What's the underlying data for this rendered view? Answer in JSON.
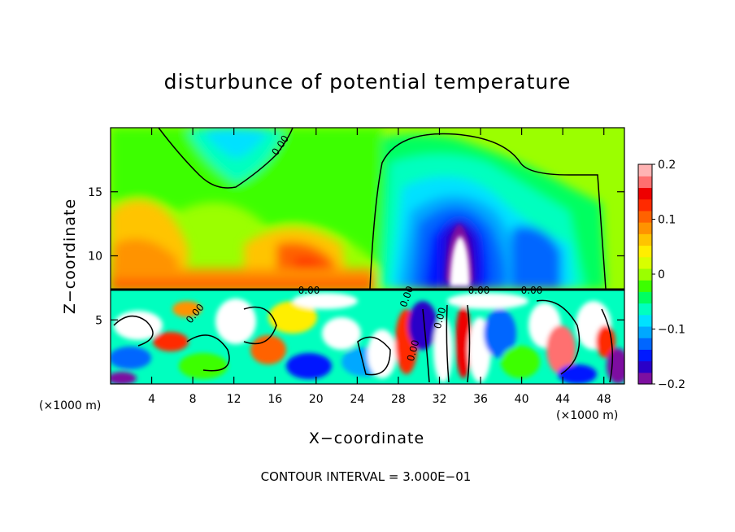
{
  "chart_data": {
    "type": "heatmap",
    "title": "disturbunce of potential temperature",
    "xlabel": "X−coordinate",
    "ylabel": "Z−coordinate",
    "x_unit": "(×1000 m)",
    "contour_note": "CONTOUR INTERVAL = 3.000E−01",
    "xlim": [
      0,
      50
    ],
    "ylim": [
      0,
      20
    ],
    "x_ticks": [
      4,
      8,
      12,
      16,
      20,
      24,
      28,
      32,
      36,
      40,
      44,
      48
    ],
    "y_ticks": [
      5,
      10,
      15
    ],
    "colorbar": {
      "range": [
        -0.2,
        0.2
      ],
      "tick_values": [
        0.2,
        0.1,
        0,
        -0.1,
        -0.2
      ],
      "tick_labels": [
        "0.2",
        "0.1",
        "0",
        "−0.1",
        "−0.2"
      ],
      "colors": [
        "#7d0fa0",
        "#2a00c8",
        "#0019ff",
        "#0066ff",
        "#00a8ff",
        "#00e1ff",
        "#00ffbf",
        "#00ff60",
        "#3cff00",
        "#9bff00",
        "#d8ff00",
        "#ffee00",
        "#ffc400",
        "#ff9300",
        "#ff6200",
        "#ff2a00",
        "#ee0000",
        "#ff6f6f",
        "#ffb3b3"
      ]
    },
    "contour_labels": [
      "0.00",
      "0.00",
      "0.00",
      "0.00",
      "0.00",
      "0.00",
      "0.00",
      "0.00"
    ],
    "grid": false,
    "legend": "colorbar-right"
  }
}
